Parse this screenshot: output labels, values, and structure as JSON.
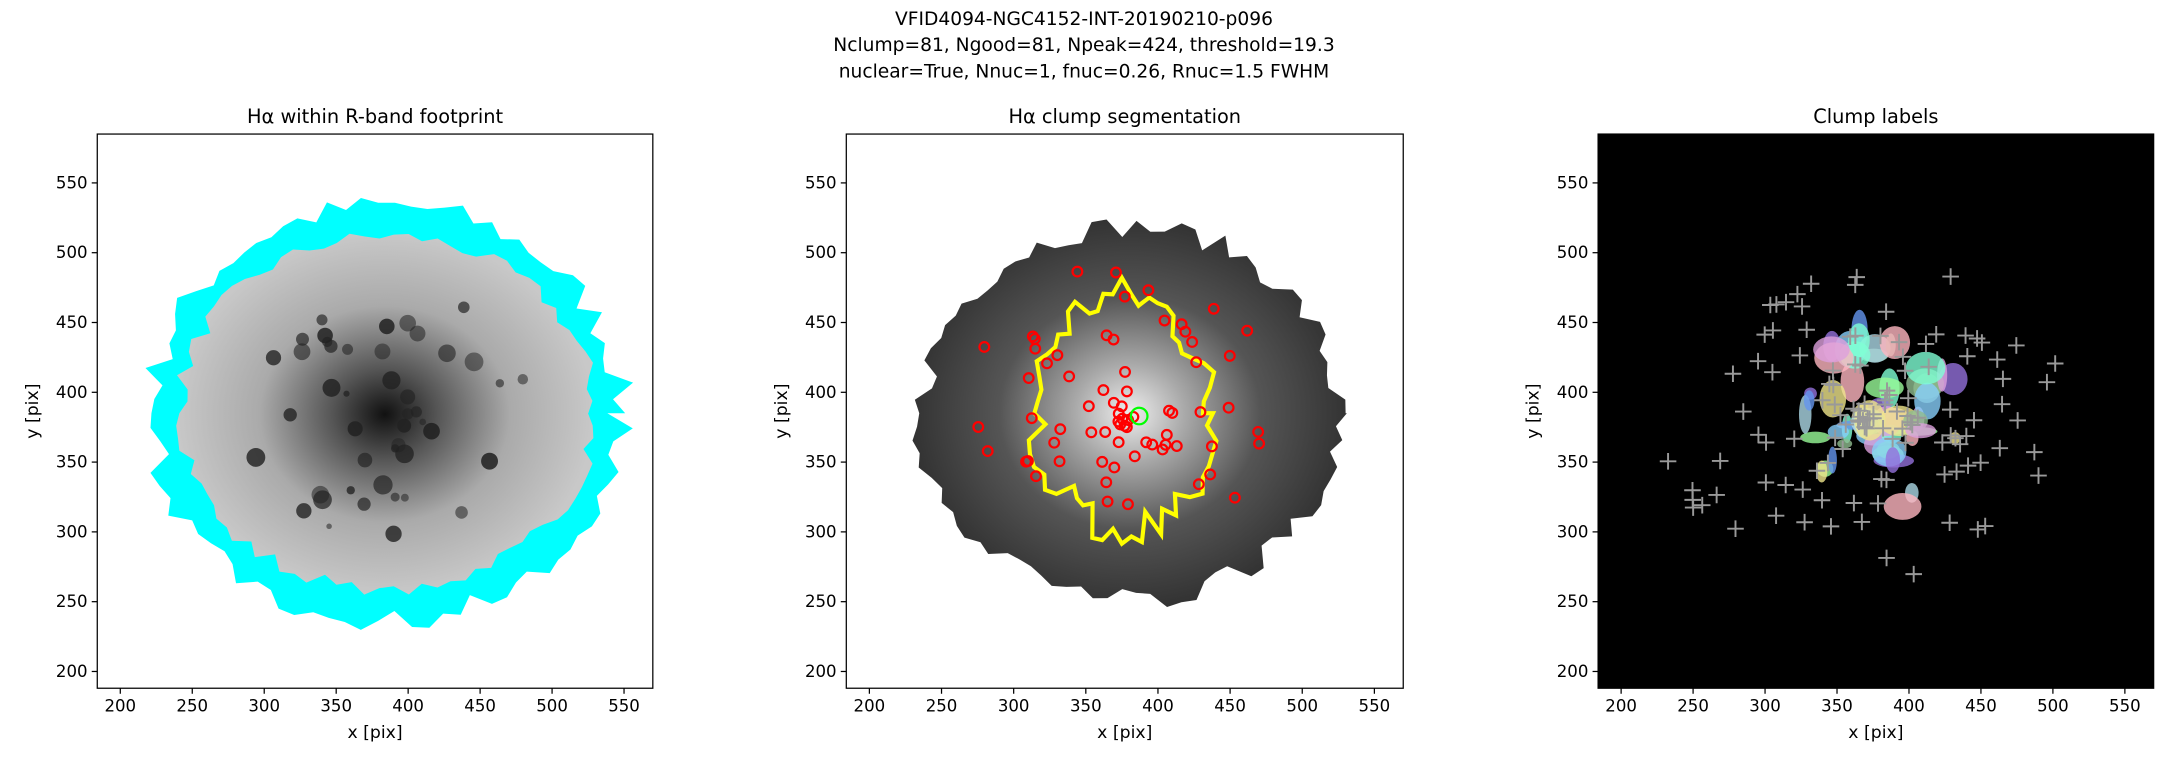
{
  "figure_title": [
    "VFID4094-NGC4152-INT-20190210-p096",
    "Nclump=81, Ngood=81, Npeak=424, threshold=19.3",
    "nuclear=True, Nnuc=1, fnuc=0.26, Rnuc=1.5 FWHM"
  ],
  "chart_data": [
    {
      "type": "image",
      "title": "Hα within R-band footprint",
      "xlabel": "x [pix]",
      "ylabel": "y [pix]",
      "xlim": [
        184,
        570
      ],
      "ylim": [
        188,
        585
      ],
      "xticks": [
        200,
        250,
        300,
        350,
        400,
        450,
        500,
        550
      ],
      "yticks": [
        200,
        250,
        300,
        350,
        400,
        450,
        500,
        550
      ]
    },
    {
      "type": "image",
      "title": "Hα clump segmentation",
      "xlabel": "x [pix]",
      "ylabel": "y [pix]",
      "xlim": [
        184,
        570
      ],
      "ylim": [
        188,
        585
      ],
      "xticks": [
        200,
        250,
        300,
        350,
        400,
        450,
        500,
        550
      ],
      "yticks": [
        200,
        250,
        300,
        350,
        400,
        450,
        500,
        550
      ]
    },
    {
      "type": "image",
      "title": "Clump labels",
      "xlabel": "x [pix]",
      "ylabel": "y [pix]",
      "xlim": [
        184,
        570
      ],
      "ylim": [
        188,
        585
      ],
      "xticks": [
        200,
        250,
        300,
        350,
        400,
        450,
        500,
        550
      ],
      "yticks": [
        200,
        250,
        300,
        350,
        400,
        450,
        500,
        550
      ]
    }
  ]
}
